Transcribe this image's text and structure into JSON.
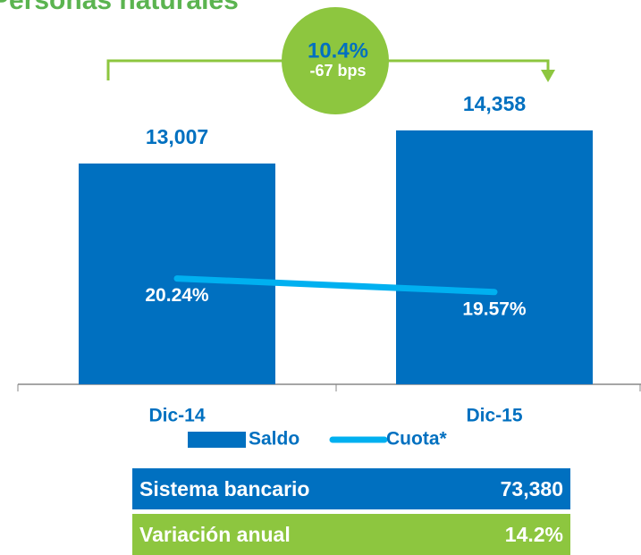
{
  "chart_data": {
    "type": "bar",
    "title": "Personas naturales",
    "categories": [
      "Dic-14",
      "Dic-15"
    ],
    "series": [
      {
        "name": "Saldo",
        "type": "bar",
        "color": "#0070c0",
        "values": [
          13007,
          14358
        ],
        "value_labels": [
          "13,007",
          "14,358"
        ]
      },
      {
        "name": "Cuota*",
        "type": "line",
        "axis": "y2",
        "color": "#00b0f0",
        "values": [
          20.24,
          19.57
        ],
        "value_labels": [
          "20.24%",
          "19.57%"
        ]
      }
    ],
    "ylim": [
      4000,
      18000
    ],
    "y2lim": [
      15,
      32
    ],
    "annotations": [
      "10.4%",
      "-67 bps"
    ]
  },
  "table": {
    "rows": [
      [
        "Sistema bancario",
        "73,380"
      ],
      [
        "Variación anual",
        "14.2%"
      ]
    ]
  }
}
